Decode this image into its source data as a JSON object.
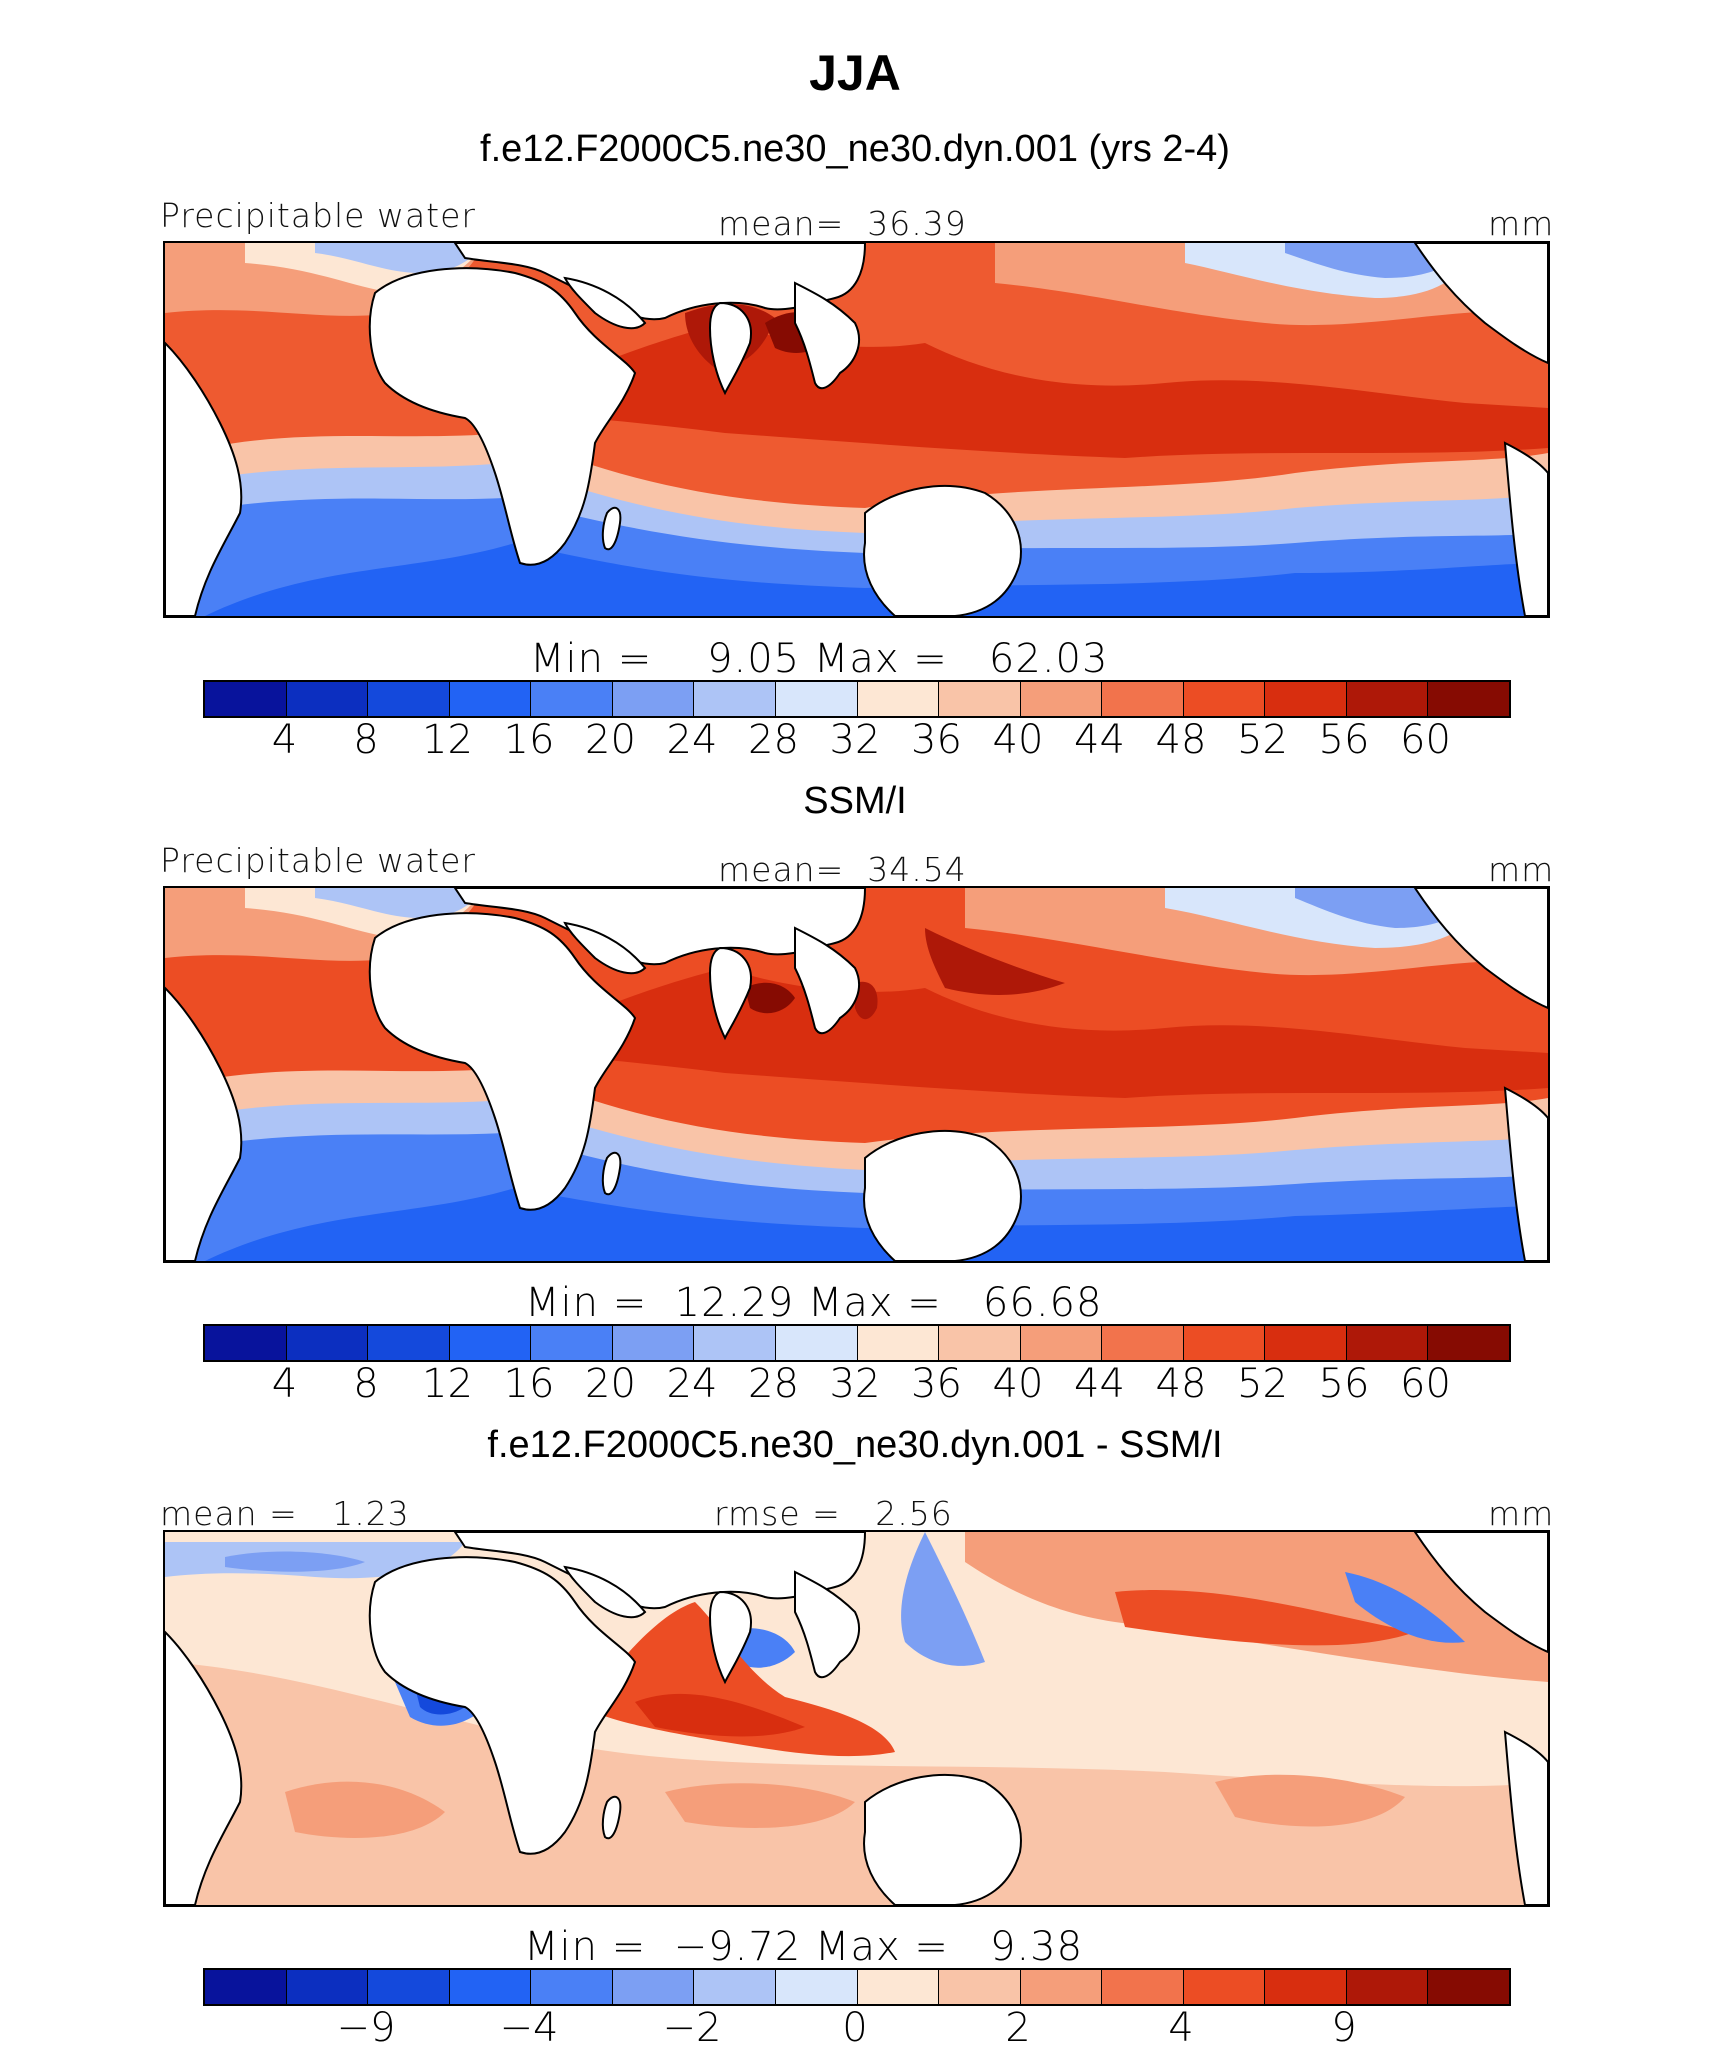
{
  "figure": {
    "season_title": "JJA"
  },
  "colorbar_colors": [
    "#08139c",
    "#0c2fc0",
    "#1449dc",
    "#2263f4",
    "#4a80f6",
    "#7c9ff3",
    "#adc4f6",
    "#d8e6fb",
    "#fde7d4",
    "#f9c4a8",
    "#f59e7a",
    "#f2734c",
    "#ec4d24",
    "#d82e0f",
    "#ae1808",
    "#860b02"
  ],
  "panels": [
    {
      "title": "f.e12.F2000C5.ne30_ne30.dyn.001 (yrs 2-4)",
      "left_label": "Precipitable water",
      "center_label": "mean=  36.39",
      "units": "mm",
      "min_max": "Min =    9.05 Max =   62.03",
      "tick_labels": [
        "4",
        "8",
        "12",
        "16",
        "20",
        "24",
        "28",
        "32",
        "36",
        "40",
        "44",
        "48",
        "52",
        "56",
        "60"
      ]
    },
    {
      "title": "SSM/I",
      "left_label": "Precipitable water",
      "center_label": "mean=  34.54",
      "units": "mm",
      "min_max": "Min =  12.29 Max =   66.68",
      "tick_labels": [
        "4",
        "8",
        "12",
        "16",
        "20",
        "24",
        "28",
        "32",
        "36",
        "40",
        "44",
        "48",
        "52",
        "56",
        "60"
      ]
    },
    {
      "title": "f.e12.F2000C5.ne30_ne30.dyn.001 - SSM/I",
      "left_label": "mean =   1.23",
      "center_label": "rmse =   2.56",
      "units": "mm",
      "min_max": "Min =  −9.72 Max =   9.38",
      "tick_labels": [
        "−9",
        "−4",
        "−2",
        "0",
        "2",
        "4",
        "9"
      ]
    }
  ]
}
